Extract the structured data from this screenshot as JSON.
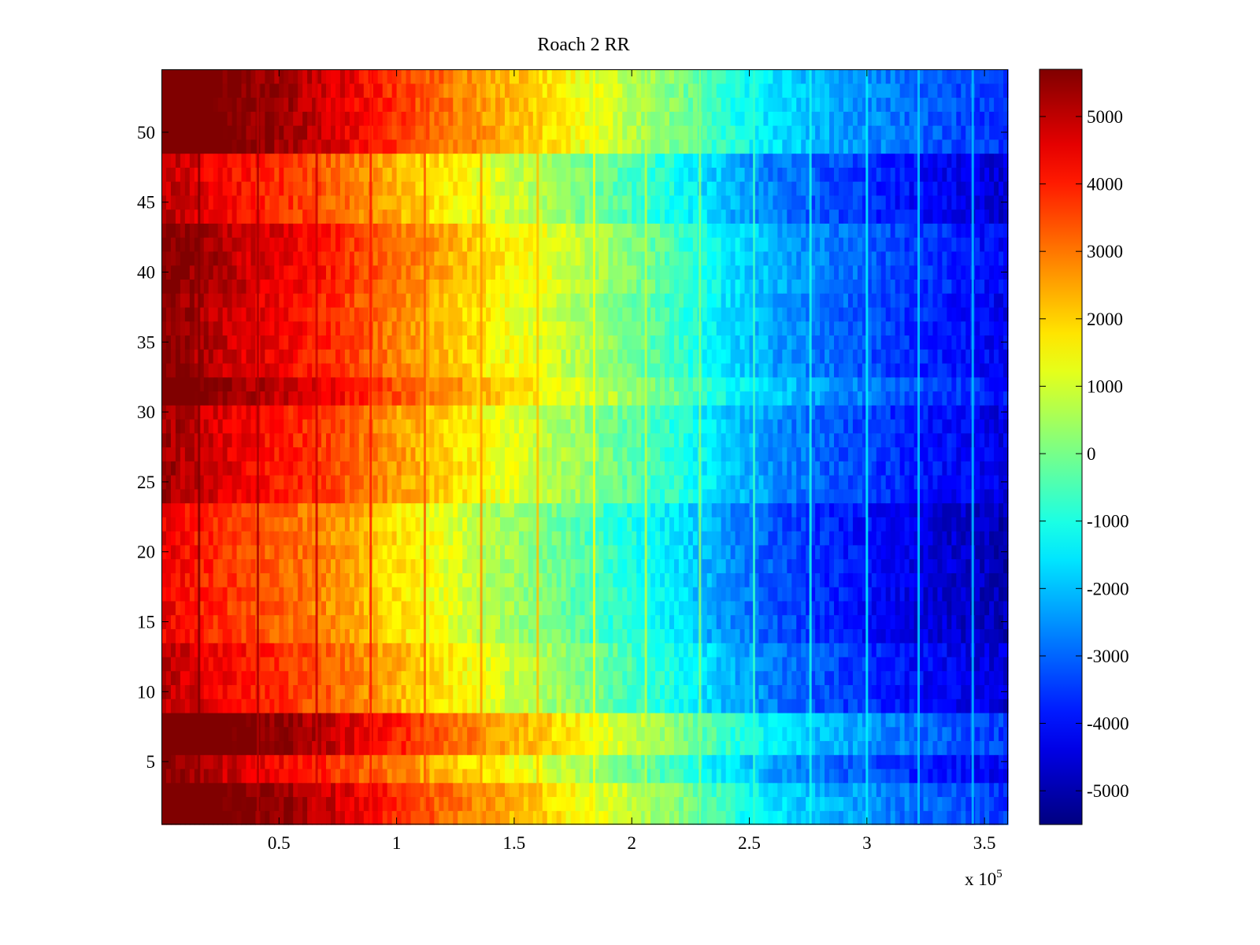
{
  "chart_data": {
    "type": "heatmap",
    "title": "Roach 2 RR",
    "xlabel": "",
    "ylabel": "",
    "x_exponent_label": {
      "base": "x 10",
      "exponent": "5"
    },
    "xlim": [
      0,
      360000
    ],
    "ylim": [
      0.5,
      54.5
    ],
    "n_rows": 54,
    "x_ticks": [
      0.5,
      1,
      1.5,
      2,
      2.5,
      3,
      3.5
    ],
    "x_tick_labels": [
      "0.5",
      "1",
      "1.5",
      "2",
      "2.5",
      "3",
      "3.5"
    ],
    "y_ticks": [
      5,
      10,
      15,
      20,
      25,
      30,
      35,
      40,
      45,
      50
    ],
    "y_tick_labels": [
      "5",
      "10",
      "15",
      "20",
      "25",
      "30",
      "35",
      "40",
      "45",
      "50"
    ],
    "colorbar": {
      "colormap": "jet",
      "clim": [
        -5500,
        5700
      ],
      "ticks": [
        5000,
        4000,
        3000,
        2000,
        1000,
        0,
        -1000,
        -2000,
        -3000,
        -4000,
        -5000
      ],
      "tick_labels": [
        "5000",
        "4000",
        "3000",
        "2000",
        "1000",
        "0",
        "-1000",
        "-2000",
        "-3000",
        "-4000",
        "-5000"
      ]
    },
    "gradient_profile": {
      "x": [
        0,
        20000,
        40000,
        60000,
        80000,
        100000,
        120000,
        140000,
        160000,
        180000,
        200000,
        220000,
        240000,
        260000,
        280000,
        300000,
        320000,
        340000,
        360000
      ],
      "values": [
        5400,
        4800,
        4300,
        3900,
        3300,
        2600,
        2000,
        1400,
        900,
        300,
        -300,
        -900,
        -1800,
        -2500,
        -3000,
        -3400,
        -3800,
        -4100,
        -4400
      ]
    },
    "row_offset_groups": [
      {
        "rows": [
          1,
          3
        ],
        "offset": 1400
      },
      {
        "rows": [
          4,
          5
        ],
        "offset": 300
      },
      {
        "rows": [
          6,
          8
        ],
        "offset": 1500
      },
      {
        "rows": [
          9,
          13
        ],
        "offset": -300
      },
      {
        "rows": [
          14,
          23
        ],
        "offset": -900
      },
      {
        "rows": [
          24,
          30
        ],
        "offset": 0
      },
      {
        "rows": [
          31,
          32
        ],
        "offset": 900
      },
      {
        "rows": [
          33,
          38
        ],
        "offset": 300
      },
      {
        "rows": [
          39,
          43
        ],
        "offset": 500
      },
      {
        "rows": [
          44,
          48
        ],
        "offset": -300
      },
      {
        "rows": [
          49,
          54
        ],
        "offset": 1300
      }
    ],
    "vertical_stripes": {
      "x": [
        16000,
        41000,
        66000,
        89000,
        112000,
        136000,
        160000,
        184000,
        206000,
        229000,
        252000,
        276000,
        300000,
        322000,
        345000
      ],
      "value_delta": [
        900,
        900,
        1100,
        1100,
        1100,
        1200,
        1300,
        1300,
        1300,
        1500,
        1500,
        1800,
        2000,
        2000,
        2200
      ]
    }
  }
}
